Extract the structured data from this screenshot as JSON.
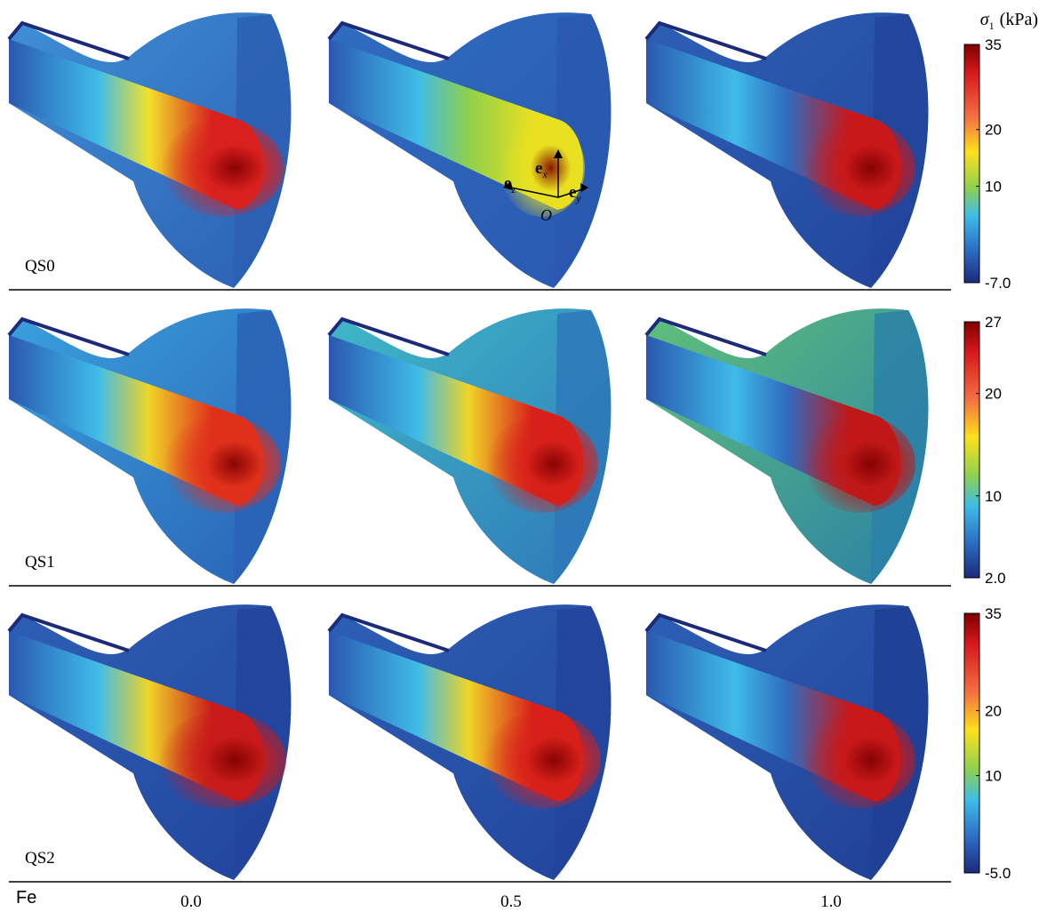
{
  "panels": [
    {
      "label": "QS0",
      "colorbar": {
        "lim": [
          -7,
          35
        ],
        "ticks": [
          35,
          20,
          10,
          {
            "value": -7,
            "label": "-7.0"
          }
        ]
      }
    },
    {
      "label": "QS1",
      "colorbar": {
        "lim": [
          2,
          27
        ],
        "ticks": [
          27,
          20,
          10,
          {
            "value": 2,
            "label": "2.0"
          }
        ]
      }
    },
    {
      "label": "QS2",
      "colorbar": {
        "lim": [
          -5,
          35
        ],
        "ticks": [
          35,
          20,
          10,
          {
            "value": -5,
            "label": "-5.0"
          }
        ]
      }
    }
  ],
  "colorbar_title": {
    "symbol": "σ",
    "subscript": "1",
    "unit": "(kPa)"
  },
  "axis": {
    "label": "Fe",
    "columns": [
      "0.0",
      "0.5",
      "1.0"
    ]
  },
  "annotation": {
    "vectors": [
      {
        "symbol": "e",
        "subscript": "z"
      },
      {
        "symbol": "e",
        "subscript": "x"
      },
      {
        "symbol": "e",
        "subscript": "y"
      }
    ],
    "origin": "O"
  }
}
